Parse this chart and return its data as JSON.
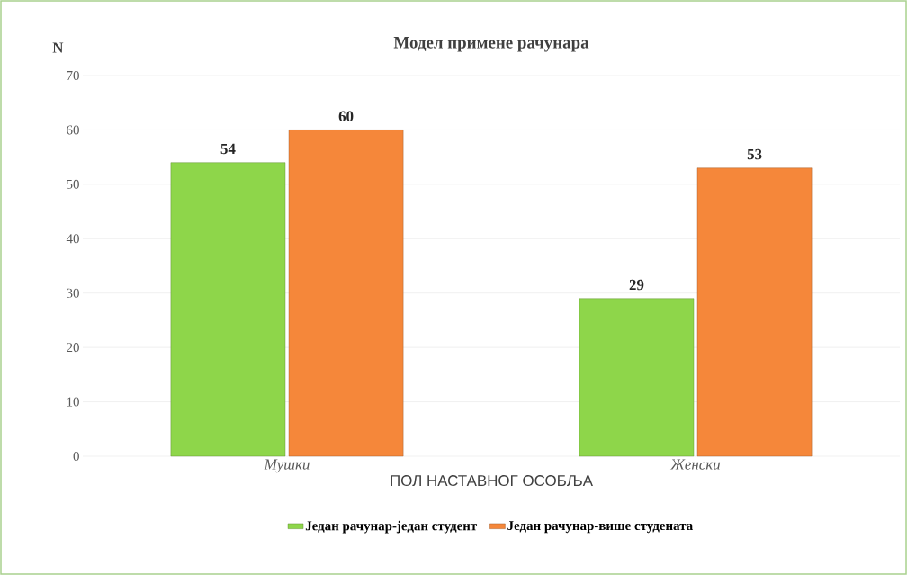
{
  "chart_data": {
    "type": "bar",
    "title": "Модел примене рачунара",
    "xlabel": "ПОЛ НАСТАВНОГ  ОСОБЉА",
    "ylabel": "N",
    "categories": [
      "Мушки",
      "Женски"
    ],
    "series": [
      {
        "name": "Један рачунар-један студент",
        "color": "#8ed64a",
        "values": [
          54,
          29
        ]
      },
      {
        "name": "Један рачунар-више студената",
        "color": "#f5873a",
        "values": [
          60,
          53
        ]
      }
    ],
    "ylim": [
      0,
      70
    ],
    "yticks": [
      0,
      10,
      20,
      30,
      40,
      50,
      60,
      70
    ],
    "grid": "y",
    "legend": "bottom",
    "data_labels": true
  }
}
